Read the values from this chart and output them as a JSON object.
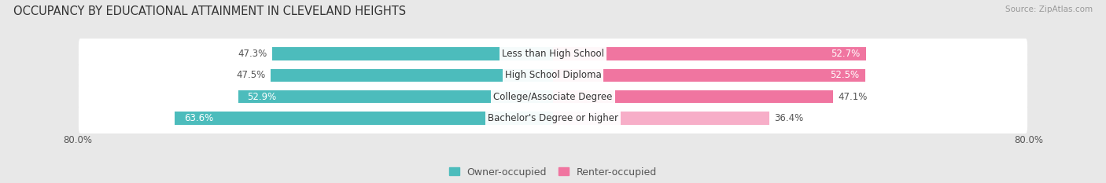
{
  "title": "OCCUPANCY BY EDUCATIONAL ATTAINMENT IN CLEVELAND HEIGHTS",
  "source": "Source: ZipAtlas.com",
  "categories": [
    "Less than High School",
    "High School Diploma",
    "College/Associate Degree",
    "Bachelor's Degree or higher"
  ],
  "owner_values": [
    47.3,
    47.5,
    52.9,
    63.6
  ],
  "renter_values": [
    52.7,
    52.5,
    47.1,
    36.4
  ],
  "owner_color": "#4CBCBC",
  "renter_color": "#F075A0",
  "renter_color_light": "#F7AEC8",
  "owner_label": "Owner-occupied",
  "renter_label": "Renter-occupied",
  "xlim": 80.0,
  "background_color": "#e8e8e8",
  "bar_bg_color": "#f5f5f5",
  "title_fontsize": 10.5,
  "label_fontsize": 8.5,
  "value_fontsize": 8.5,
  "legend_fontsize": 9.0,
  "source_fontsize": 7.5
}
